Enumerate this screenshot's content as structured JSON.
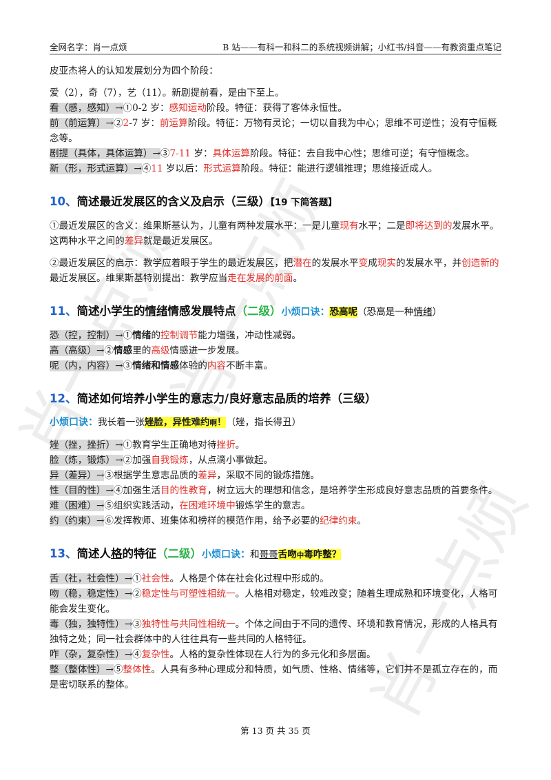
{
  "header": {
    "left": "全网名字：肖一点烦",
    "right": "B 站——有科一和科二的系统视频讲解；小红书/抖音——有教资重点笔记"
  },
  "intro": {
    "line1": "皮亚杰将人的认知发展划分为四个阶段：",
    "mnemonic": "爱（2），奇（7），艺（11）。新剧提前看，是由下至上。",
    "stages": [
      {
        "key": "看（感，感知）→",
        "a": "①0-2 岁：",
        "term": "感知运动",
        "b": "阶段。特征：获得了客体永恒性。"
      },
      {
        "key": "前（前运算）→",
        "a": "②",
        "num": "2",
        "a2": "-7 岁：",
        "term": "前运算",
        "b": "阶段。特征：万物有灵论；一切以自我为中心；思维不可逆性；没有守恒概念等。"
      },
      {
        "key": "剧提（具体，具体运算）→",
        "a": "③",
        "num": "7-11",
        "a2": " 岁：",
        "term": "具体运算",
        "b": "阶段。特征：去自我中心性；思维可逆；有守恒概念。"
      },
      {
        "key": "新（形，形式运算）→",
        "a": "④",
        "num": "11",
        "a2": " 岁以后：",
        "term": "形式运算",
        "b": "阶段。特征：能进行逻辑推理；思维接近成人。"
      }
    ]
  },
  "s10": {
    "num": "10、",
    "title": "简述最近发展区的含义及启示（三级）",
    "tag": "【19 下简答题】",
    "p1": [
      "①最近发展区的含义：维果斯基认为，儿童有两种发展水平：一是儿童",
      "现有",
      "水平；二是",
      "即将达到的",
      "发展水平。这两种水平之间的",
      "差异",
      "就是最近发展区。"
    ],
    "p2": [
      "②最近发展区的启示：教学应着眼于学生的最近发展区，把",
      "潜在",
      "的发展水平",
      "变",
      "成",
      "现实",
      "的发展水平，并",
      "创造新的",
      "最近发展区。维果斯基特别提出：教学应当",
      "走在发展的前面",
      "。"
    ]
  },
  "s11": {
    "num": "11、",
    "title_a": "简述小学生的",
    "title_u": "情绪",
    "title_b": "情感发展特点",
    "level": "（二级）",
    "mn_label": "小烦口诀：",
    "mn": "恐高呢",
    "mn_note_a": "（恐高是一种",
    "mn_note_u": "情绪",
    "mn_note_b": "）",
    "items": [
      {
        "key": "恐（控，控制）→",
        "a": "①",
        "bold": "情绪",
        "b": "的",
        "red": "控制调节",
        "c": "能力增强，冲动性减弱。"
      },
      {
        "key": "高（高级）→",
        "a": "②",
        "bold": "情感",
        "b": "里的",
        "red": "高级",
        "c": "情感进一步发展。"
      },
      {
        "key": "呢（内，内容）→",
        "a": "③",
        "bold": "情绪和情感",
        "b": "体验的",
        "red": "内容",
        "c": "不断丰富。"
      }
    ]
  },
  "s12": {
    "num": "12、",
    "title": "简述如何培养小学生的意志力/良好意志品质的培养（三级）",
    "mn_label": "小烦口诀：",
    "mn_a": "我长着一张",
    "mn_hl": "矬脸，异性难约",
    "mn_hl_small": "啊",
    "mn_hl_end": "！",
    "mn_note": "（矬，指长得丑）",
    "items": [
      {
        "key": "矬（挫，挫折）→",
        "a": "①教育学生正确地对待",
        "red": "挫折",
        "b": "。"
      },
      {
        "key": "脸（炼，锻炼）→",
        "a": "②加强",
        "red": "自我锻炼",
        "b": "，从点滴小事做起。"
      },
      {
        "key": "异（差异）→",
        "a": "③根据学生意志品质的",
        "red": "差异",
        "b": "，采取不同的锻炼措施。"
      },
      {
        "key": "性（目的性）→",
        "a": "④加强生活",
        "red": "目的性教育",
        "b": "，树立远大的理想和信念，是培养学生形成良好意志品质的首要条件。"
      },
      {
        "key": "难（困难）→",
        "a": "⑤组织实践活动，",
        "red": "在困难环境中",
        "b": "锻炼学生的意志。"
      },
      {
        "key": "约（约束）→",
        "a": "⑥发挥教师、班集体和榜样的模范作用，给予必要的",
        "red": "纪律约束",
        "b": "。"
      }
    ]
  },
  "s13": {
    "num": "13、",
    "title_a": "简述人",
    "title_u": "格",
    "title_b": "的特征",
    "level": "（二级）",
    "mn_label": "小烦口诀：",
    "mn_a": "和",
    "mn_u": "哥哥",
    "mn_hl": "舌吻",
    "mn_hl_small": "中",
    "mn_hl_end": "毒咋整？",
    "items": [
      {
        "key": "舌（社，社会性）→",
        "a": "①",
        "red": "社会性",
        "b": "。人格是个体在社会化过程中形成的。"
      },
      {
        "key": "吻（稳，稳定性）→",
        "a": "②",
        "red": "稳定性与可塑性相统一",
        "b": "。人格相对稳定，较难改变；随着生理成熟和环境变化，人格可能会发生变化。"
      },
      {
        "key": "毒（独，独特性）→",
        "a": "③",
        "red": "独特性与共同性相统一",
        "b": "。个体之间由于不同的遗传、环境和教育情况，形成的人格具有独特之处；同一社会群体中的人往往具有一些共同的人格特征。"
      },
      {
        "key": "咋（杂，复杂性）→",
        "a": "④",
        "red": "复杂性",
        "b": "。人格的复杂性体现在人行为的多元化和多层面。"
      },
      {
        "key": "整（整体性）→",
        "a": "⑤",
        "red": "整体性",
        "b": "。人具有多种心理成分和特质，如气质、性格、情绪等，它们并不是孤立存在的，而是密切联系的整体。"
      }
    ]
  },
  "footer": "第 13 页 共 35 页",
  "watermark": "肖一点烦"
}
